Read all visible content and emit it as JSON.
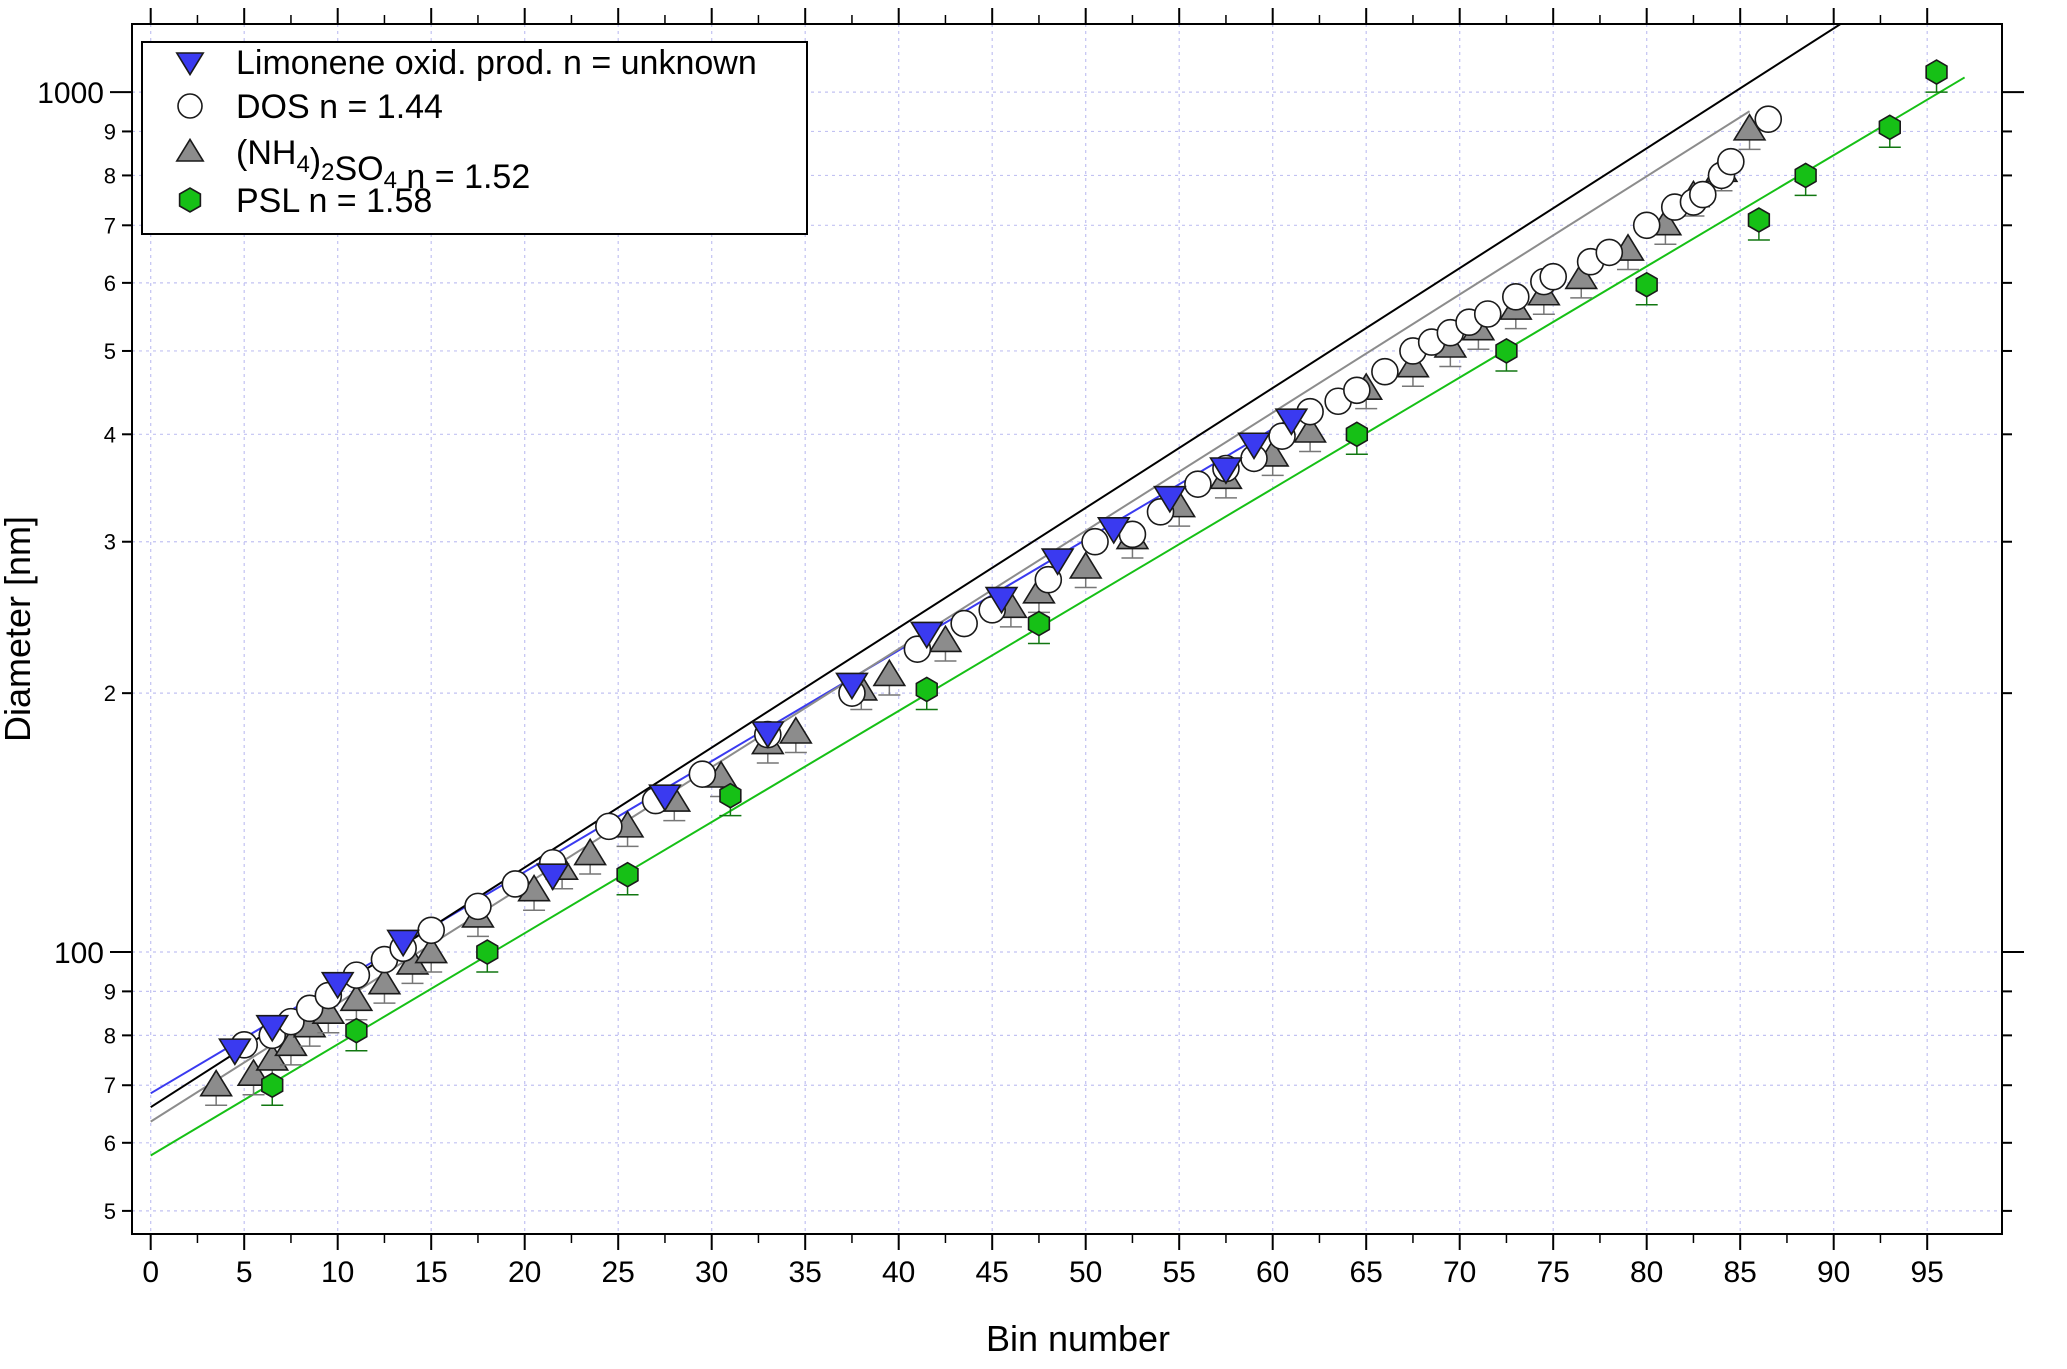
{
  "chart_data": {
    "type": "scatter",
    "title": "",
    "xlabel": "Bin number",
    "ylabel": "Diameter [nm]",
    "xlim": [
      -1,
      99
    ],
    "ylim": [
      47,
      1200
    ],
    "yscale": "log",
    "grid": true,
    "legend_position": "top-left",
    "x_ticks": [
      0,
      5,
      10,
      15,
      20,
      25,
      30,
      35,
      40,
      45,
      50,
      55,
      60,
      65,
      70,
      75,
      80,
      85,
      90,
      95
    ],
    "y_major_ticks": [
      {
        "value": 100,
        "label": "100"
      },
      {
        "value": 1000,
        "label": "1000"
      }
    ],
    "y_minor_ticks": [
      {
        "value": 50,
        "label": "5"
      },
      {
        "value": 60,
        "label": "6"
      },
      {
        "value": 70,
        "label": "7"
      },
      {
        "value": 80,
        "label": "8"
      },
      {
        "value": 90,
        "label": "9"
      },
      {
        "value": 200,
        "label": "2"
      },
      {
        "value": 300,
        "label": "3"
      },
      {
        "value": 400,
        "label": "4"
      },
      {
        "value": 500,
        "label": "5"
      },
      {
        "value": 600,
        "label": "6"
      },
      {
        "value": 700,
        "label": "7"
      },
      {
        "value": 800,
        "label": "8"
      },
      {
        "value": 900,
        "label": "9"
      }
    ],
    "series": [
      {
        "name": "Limonene oxid. prod. n = unknown",
        "legend_prefix": "Limonene oxid. prod. n = unknown",
        "legend_sub1": "",
        "legend_mid": "",
        "legend_sub2": "",
        "legend_suffix": "",
        "marker": "triangle-down",
        "color": "#3a3af0",
        "line_color": "#3a3af0",
        "fit": {
          "x0": 0,
          "y0": 68.5,
          "x1": 61,
          "y1": 418
        },
        "x": [
          4.5,
          6.5,
          10,
          13.5,
          21.5,
          27.5,
          33,
          37.5,
          41.5,
          45.5,
          48.5,
          51.5,
          54.5,
          57.5,
          59,
          61
        ],
        "y": [
          77,
          82,
          92,
          103,
          123,
          152,
          180,
          205,
          235,
          258,
          286,
          311,
          338,
          365,
          390,
          416
        ]
      },
      {
        "name": "DOS n = 1.44",
        "legend_prefix": "DOS n = 1.44",
        "legend_sub1": "",
        "legend_mid": "",
        "legend_sub2": "",
        "legend_suffix": "",
        "marker": "circle",
        "color": "#ffffff",
        "line_color": "#000000",
        "fit": {
          "x0": 0,
          "y0": 66,
          "x1": 92.5,
          "y1": 1285
        },
        "x": [
          5,
          6.5,
          7.5,
          8.5,
          9.5,
          11,
          12.5,
          13.5,
          15,
          17.5,
          19.5,
          21.5,
          24.5,
          27,
          29.5,
          33,
          37.5,
          41,
          43.5,
          45,
          48,
          50.5,
          52.5,
          54,
          56,
          57.5,
          59,
          60.5,
          62,
          63.5,
          64.5,
          66,
          67.5,
          68.5,
          69.5,
          70.5,
          71.5,
          73,
          74.5,
          75,
          77,
          78,
          80,
          81.5,
          82.5,
          83,
          84,
          84.5,
          86.5
        ],
        "y": [
          78,
          80,
          83,
          86,
          89,
          94,
          98,
          101,
          106,
          113,
          120,
          127,
          140,
          150,
          161,
          179,
          200,
          225,
          241,
          250,
          271,
          300,
          306,
          325,
          350,
          365,
          375,
          398,
          425,
          437,
          450,
          473,
          500,
          512,
          525,
          540,
          552,
          578,
          602,
          610,
          635,
          651,
          700,
          735,
          745,
          760,
          800,
          830,
          930
        ]
      },
      {
        "name": "(NH4)2SO4 n = 1.52",
        "legend_prefix": "(NH",
        "legend_sub1": "4",
        "legend_mid": ")",
        "legend_sub2": "2",
        "legend_suffix": "SO4 n = 1.52",
        "marker": "triangle-up",
        "color": "#8c8c8c",
        "line_color": "#8c8c8c",
        "fit": {
          "x0": 0,
          "y0": 63.5,
          "x1": 85.5,
          "y1": 950
        },
        "x": [
          3.5,
          5.5,
          6.5,
          7.5,
          8.5,
          9.5,
          11,
          12.5,
          14,
          15,
          17.5,
          20.5,
          22,
          23.5,
          25.5,
          28,
          30.5,
          33,
          34.5,
          38,
          39.5,
          42.5,
          46,
          47.5,
          50,
          52.5,
          55,
          57.5,
          60,
          62,
          65,
          67.5,
          69.5,
          71,
          73,
          74.5,
          76.5,
          79,
          81,
          82.5,
          84,
          85.5
        ],
        "y": [
          70,
          72,
          75,
          78,
          82,
          85,
          88,
          92,
          97,
          100,
          110,
          118,
          125,
          130,
          140,
          150,
          160,
          175,
          180,
          202,
          210,
          230,
          252,
          262,
          280,
          303,
          330,
          356,
          378,
          403,
          452,
          480,
          506,
          530,
          560,
          582,
          608,
          656,
          702,
          757,
          810,
          905
        ]
      },
      {
        "name": "PSL n = 1.58",
        "legend_prefix": "PSL n = 1.58",
        "legend_sub1": "",
        "legend_mid": "",
        "legend_sub2": "",
        "legend_suffix": "",
        "marker": "hexagon",
        "color": "#16c016",
        "line_color": "#16c016",
        "fit": {
          "x0": 0,
          "y0": 58,
          "x1": 97,
          "y1": 1040
        },
        "x": [
          6.5,
          11,
          18,
          25.5,
          31,
          41.5,
          47.5,
          64.5,
          72.5,
          80,
          86,
          88.5,
          93,
          95.5
        ],
        "y": [
          70,
          81,
          100,
          123,
          152,
          202,
          241,
          400,
          500,
          597,
          710,
          800,
          910,
          1055
        ]
      }
    ]
  }
}
